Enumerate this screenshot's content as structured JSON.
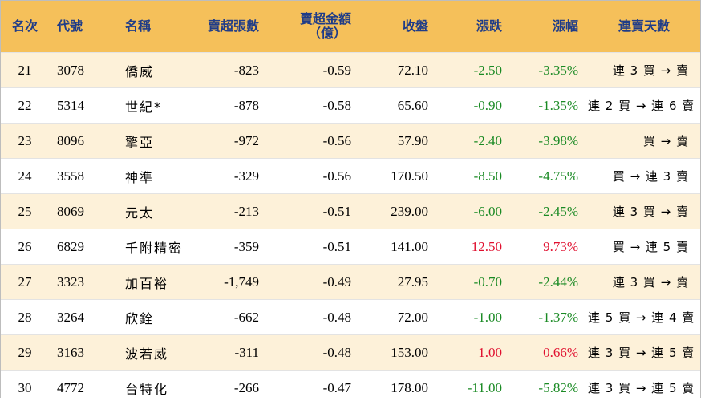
{
  "headers": {
    "rank": "名次",
    "code": "代號",
    "name": "名稱",
    "sell_volume": "賣超張數",
    "sell_amount_line1": "賣超金額",
    "sell_amount_line2": "（億）",
    "close": "收盤",
    "change": "漲跌",
    "change_pct": "漲幅",
    "streak": "連賣天數"
  },
  "colors": {
    "header_bg": "#f5c05a",
    "header_text": "#1f3c88",
    "up": "#e0102f",
    "down": "#1a8a24",
    "odd_row_bg": "#fdf1d9"
  },
  "rows": [
    {
      "rank": "21",
      "code": "3078",
      "name": "僑威",
      "sell_volume": "-823",
      "sell_amount": "-0.59",
      "close": "72.10",
      "change": "-2.50",
      "change_pct": "-3.35%",
      "direction": "down",
      "streak": "連 3 買 → 賣"
    },
    {
      "rank": "22",
      "code": "5314",
      "name": "世紀*",
      "sell_volume": "-878",
      "sell_amount": "-0.58",
      "close": "65.60",
      "change": "-0.90",
      "change_pct": "-1.35%",
      "direction": "down",
      "streak": "連 2 買 → 連 6 賣"
    },
    {
      "rank": "23",
      "code": "8096",
      "name": "擎亞",
      "sell_volume": "-972",
      "sell_amount": "-0.56",
      "close": "57.90",
      "change": "-2.40",
      "change_pct": "-3.98%",
      "direction": "down",
      "streak": "買 → 賣"
    },
    {
      "rank": "24",
      "code": "3558",
      "name": "神準",
      "sell_volume": "-329",
      "sell_amount": "-0.56",
      "close": "170.50",
      "change": "-8.50",
      "change_pct": "-4.75%",
      "direction": "down",
      "streak": "買 → 連 3 賣"
    },
    {
      "rank": "25",
      "code": "8069",
      "name": "元太",
      "sell_volume": "-213",
      "sell_amount": "-0.51",
      "close": "239.00",
      "change": "-6.00",
      "change_pct": "-2.45%",
      "direction": "down",
      "streak": "連 3 買 → 賣"
    },
    {
      "rank": "26",
      "code": "6829",
      "name": "千附精密",
      "sell_volume": "-359",
      "sell_amount": "-0.51",
      "close": "141.00",
      "change": "12.50",
      "change_pct": "9.73%",
      "direction": "up",
      "streak": "買 → 連 5 賣"
    },
    {
      "rank": "27",
      "code": "3323",
      "name": "加百裕",
      "sell_volume": "-1,749",
      "sell_amount": "-0.49",
      "close": "27.95",
      "change": "-0.70",
      "change_pct": "-2.44%",
      "direction": "down",
      "streak": "連 3 買 → 賣"
    },
    {
      "rank": "28",
      "code": "3264",
      "name": "欣銓",
      "sell_volume": "-662",
      "sell_amount": "-0.48",
      "close": "72.00",
      "change": "-1.00",
      "change_pct": "-1.37%",
      "direction": "down",
      "streak": "連 5 買 → 連 4 賣"
    },
    {
      "rank": "29",
      "code": "3163",
      "name": "波若威",
      "sell_volume": "-311",
      "sell_amount": "-0.48",
      "close": "153.00",
      "change": "1.00",
      "change_pct": "0.66%",
      "direction": "up",
      "streak": "連 3 買 → 連 5 賣"
    },
    {
      "rank": "30",
      "code": "4772",
      "name": "台特化",
      "sell_volume": "-266",
      "sell_amount": "-0.47",
      "close": "178.00",
      "change": "-11.00",
      "change_pct": "-5.82%",
      "direction": "down",
      "streak": "連 3 買 → 連 5 賣"
    }
  ]
}
